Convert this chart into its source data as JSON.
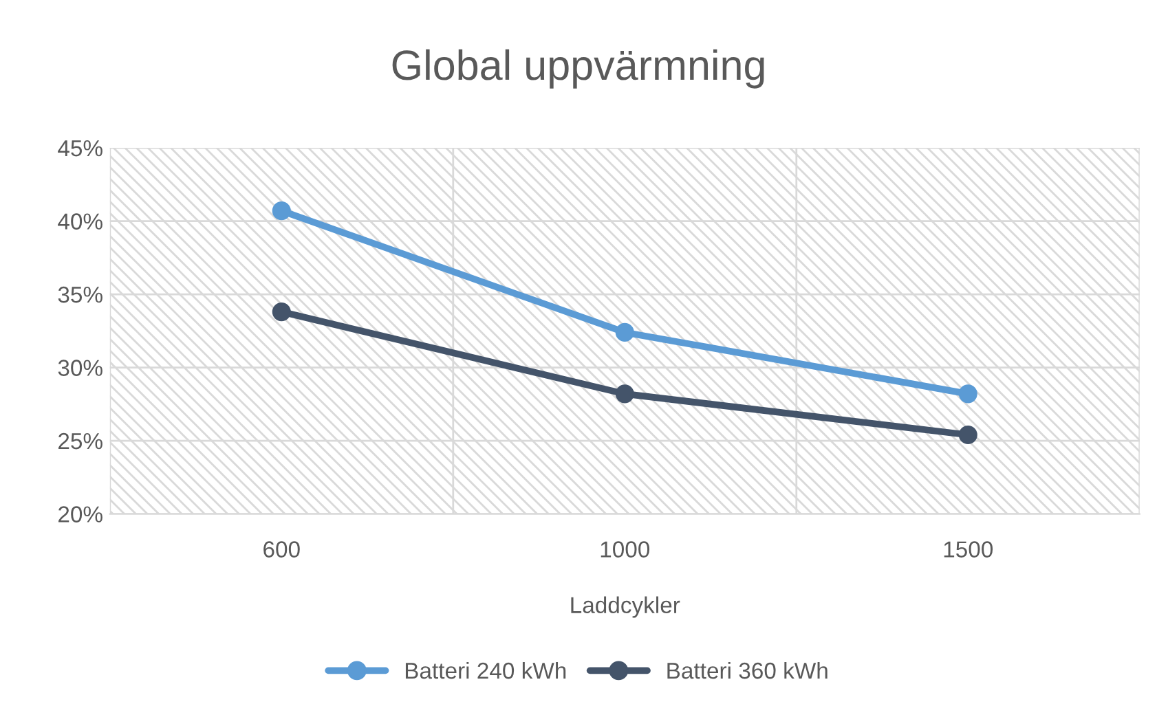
{
  "chart_data": {
    "type": "line",
    "title": "Global uppvärmning",
    "xlabel": "Laddcykler",
    "categories": [
      "600",
      "1000",
      "1500"
    ],
    "series": [
      {
        "name": "Batteri 240 kWh",
        "color": "#5b9bd5",
        "values": [
          40.7,
          32.4,
          28.2
        ]
      },
      {
        "name": "Batteri 360 kWh",
        "color": "#44546a",
        "values": [
          33.8,
          28.2,
          25.4
        ]
      }
    ],
    "ylim": [
      20,
      45
    ],
    "yticks": [
      {
        "value": 20,
        "label": "20%"
      },
      {
        "value": 25,
        "label": "25%"
      },
      {
        "value": 30,
        "label": "30%"
      },
      {
        "value": 35,
        "label": "35%"
      },
      {
        "value": 40,
        "label": "40%"
      },
      {
        "value": 45,
        "label": "45%"
      }
    ],
    "grid": true,
    "legend": "bottom",
    "marker": "circle",
    "line_style": "solid"
  }
}
